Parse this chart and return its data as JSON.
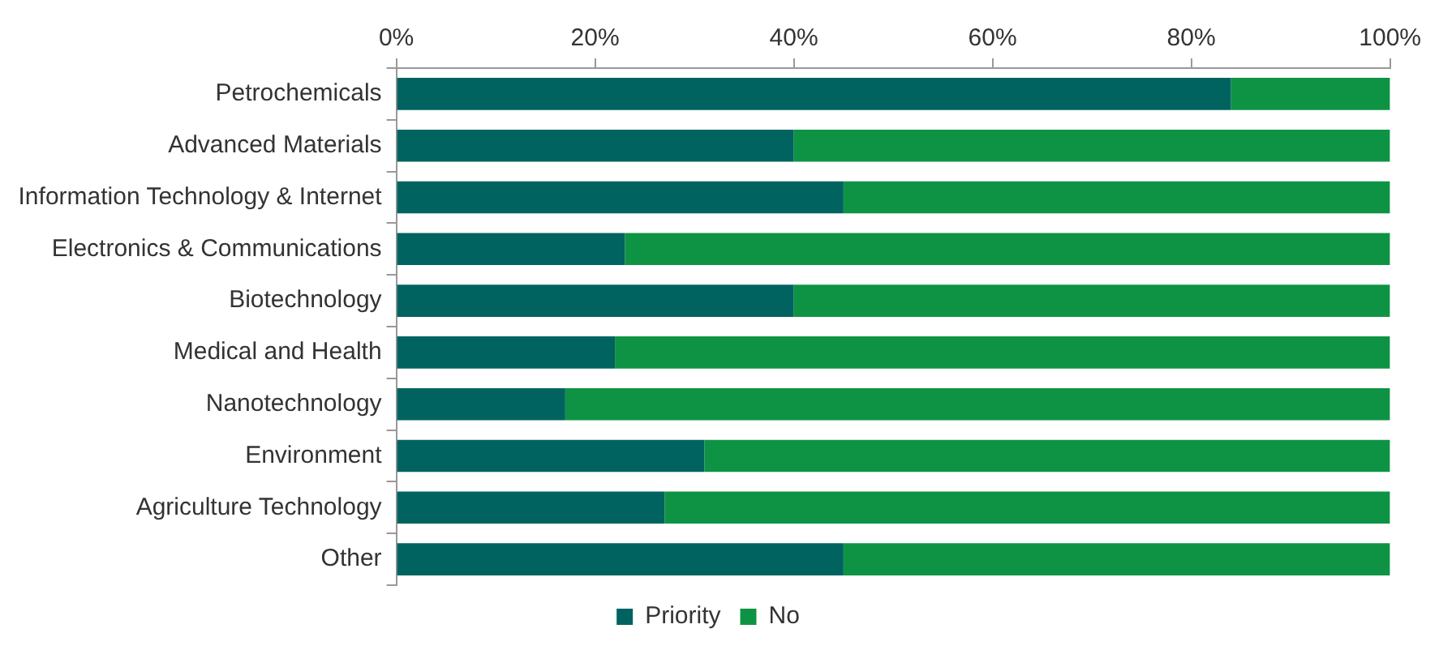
{
  "chart_data": {
    "type": "bar",
    "orientation": "horizontal",
    "stacked": true,
    "categories": [
      "Petrochemicals",
      "Advanced Materials",
      "Information Technology & Internet",
      "Electronics & Communications",
      "Biotechnology",
      "Medical and Health",
      "Nanotechnology",
      "Environment",
      "Agriculture Technology",
      "Other"
    ],
    "series": [
      {
        "name": "Priority",
        "color": "#00635f",
        "values": [
          84,
          40,
          45,
          23,
          40,
          22,
          17,
          31,
          27,
          45
        ]
      },
      {
        "name": "No",
        "color": "#0e9345",
        "values": [
          16,
          60,
          55,
          77,
          60,
          78,
          83,
          69,
          73,
          55
        ]
      }
    ],
    "xlim": [
      0,
      100
    ],
    "xticks": [
      {
        "value": 0,
        "label": "0%"
      },
      {
        "value": 20,
        "label": "20%"
      },
      {
        "value": 40,
        "label": "40%"
      },
      {
        "value": 60,
        "label": "60%"
      },
      {
        "value": 80,
        "label": "80%"
      },
      {
        "value": 100,
        "label": "100%"
      }
    ],
    "grid": false,
    "legend": "bottom"
  }
}
